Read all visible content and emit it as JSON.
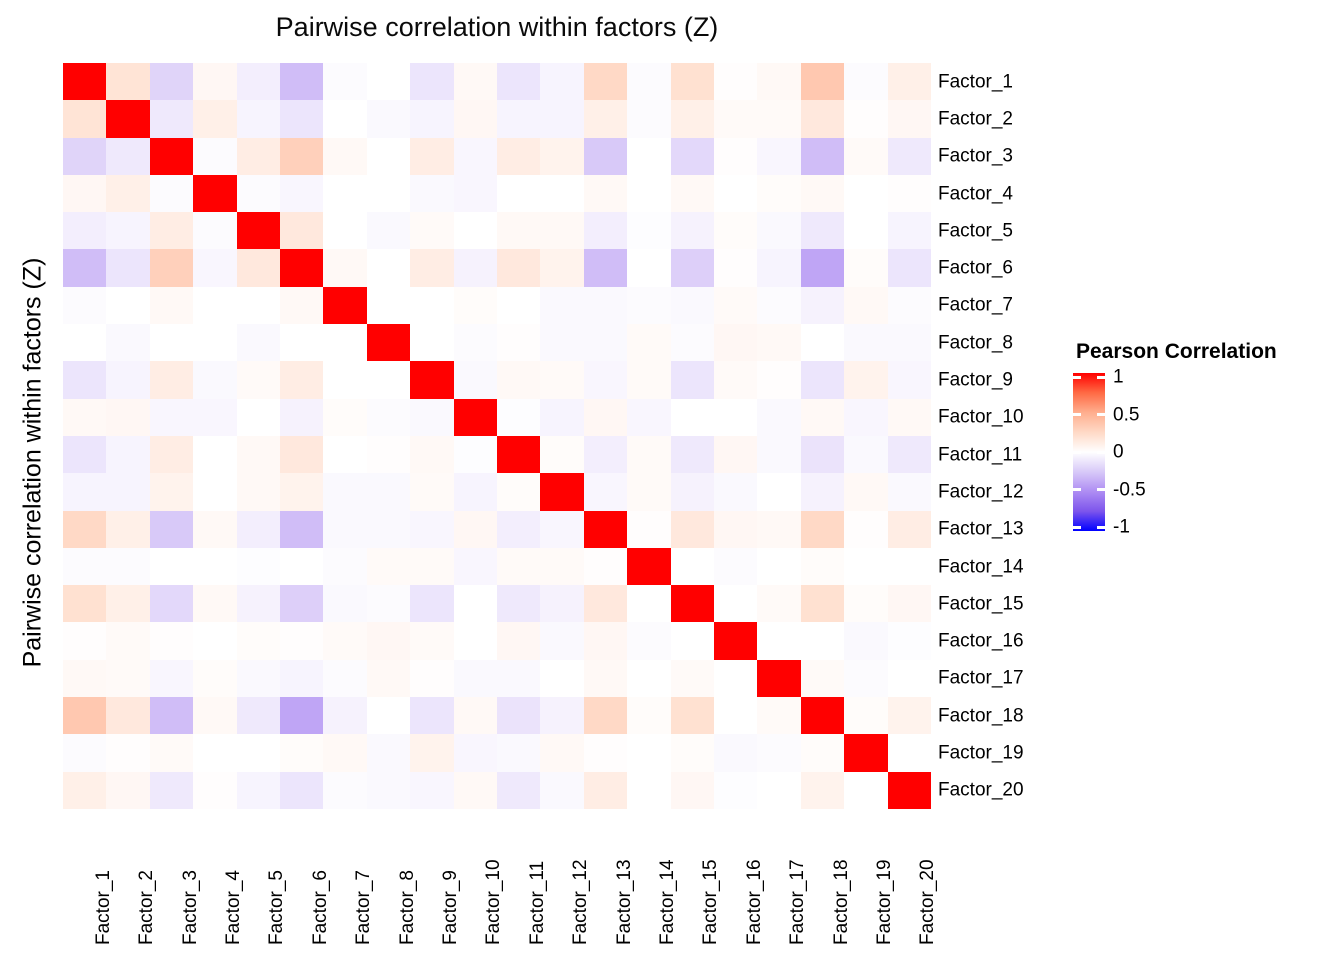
{
  "title": "Pairwise correlation within factors (Z)",
  "y_axis_title": "Pairwise correlation within factors (Z)",
  "legend": {
    "title": "Pearson Correlation",
    "tick_labels": [
      "1",
      "0.5",
      "0",
      "-0.5",
      "-1"
    ],
    "tick_values": [
      1,
      0.5,
      0,
      -0.5,
      -1
    ],
    "gradient_stops": [
      [
        1.0,
        "#FF0000"
      ],
      [
        0.75,
        "#FF6A44"
      ],
      [
        0.5,
        "#FFAE8E"
      ],
      [
        0.25,
        "#FFD9C6"
      ],
      [
        0.0,
        "#FFFFFF"
      ],
      [
        -0.25,
        "#D8C9F8"
      ],
      [
        -0.5,
        "#AE8DF3"
      ],
      [
        -0.75,
        "#7D55EC"
      ],
      [
        -1.0,
        "#0000FF"
      ]
    ],
    "high_color": "#FF0000",
    "mid_color": "#FFFFFF",
    "low_color": "#0000FF"
  },
  "chart_data": {
    "type": "heatmap",
    "title": "Pairwise correlation within factors (Z)",
    "legend_title": "Pearson Correlation",
    "legend_position": "right",
    "value_range": [
      -1,
      1
    ],
    "x_categories": [
      "Factor_1",
      "Factor_2",
      "Factor_3",
      "Factor_4",
      "Factor_5",
      "Factor_6",
      "Factor_7",
      "Factor_8",
      "Factor_9",
      "Factor_10",
      "Factor_11",
      "Factor_12",
      "Factor_13",
      "Factor_14",
      "Factor_15",
      "Factor_16",
      "Factor_17",
      "Factor_18",
      "Factor_19",
      "Factor_20"
    ],
    "y_categories": [
      "Factor_1",
      "Factor_2",
      "Factor_3",
      "Factor_4",
      "Factor_5",
      "Factor_6",
      "Factor_7",
      "Factor_8",
      "Factor_9",
      "Factor_10",
      "Factor_11",
      "Factor_12",
      "Factor_13",
      "Factor_14",
      "Factor_15",
      "Factor_16",
      "Factor_17",
      "Factor_18",
      "Factor_19",
      "Factor_20"
    ],
    "values": [
      [
        1,
        0.18,
        -0.2,
        0.05,
        -0.08,
        -0.3,
        -0.02,
        0,
        -0.12,
        0.04,
        -0.12,
        -0.05,
        0.25,
        -0.02,
        0.2,
        0.01,
        0.04,
        0.35,
        -0.02,
        0.1
      ],
      [
        0.18,
        1,
        -0.1,
        0.1,
        -0.05,
        -0.12,
        0,
        -0.03,
        -0.05,
        0.05,
        -0.05,
        -0.05,
        0.1,
        -0.02,
        0.1,
        0.03,
        0.03,
        0.15,
        0.01,
        0.05
      ],
      [
        -0.2,
        -0.1,
        1,
        -0.02,
        0.12,
        0.3,
        0.04,
        0,
        0.12,
        -0.04,
        0.12,
        0.08,
        -0.25,
        0,
        -0.18,
        0.01,
        -0.04,
        -0.3,
        0.03,
        -0.1
      ],
      [
        0.05,
        0.1,
        -0.02,
        1,
        -0.02,
        -0.04,
        0,
        0,
        -0.03,
        -0.04,
        0,
        0,
        0.04,
        0,
        0.04,
        0,
        0.02,
        0.04,
        0,
        0.01
      ],
      [
        -0.08,
        -0.05,
        0.12,
        -0.02,
        1,
        0.15,
        0,
        -0.03,
        0.03,
        0,
        0.04,
        0.04,
        -0.08,
        -0.01,
        -0.06,
        0.02,
        -0.03,
        -0.1,
        0,
        -0.05
      ],
      [
        -0.3,
        -0.12,
        0.3,
        -0.04,
        0.15,
        1,
        0.04,
        0,
        0.12,
        -0.06,
        0.15,
        0.08,
        -0.3,
        0,
        -0.22,
        0.01,
        -0.05,
        -0.4,
        0.02,
        -0.12
      ],
      [
        -0.02,
        0,
        0.04,
        0,
        0,
        0.04,
        1,
        0,
        0,
        0.02,
        0,
        -0.03,
        -0.03,
        -0.02,
        -0.03,
        0.03,
        -0.02,
        -0.06,
        0.04,
        -0.02
      ],
      [
        0,
        -0.03,
        0,
        0,
        -0.03,
        0,
        0,
        1,
        0,
        -0.02,
        0.01,
        -0.03,
        -0.03,
        0.03,
        -0.02,
        0.05,
        0.04,
        0,
        -0.03,
        -0.03
      ],
      [
        -0.12,
        -0.05,
        0.12,
        -0.03,
        0.03,
        0.12,
        0,
        0,
        1,
        -0.03,
        0.04,
        0.03,
        -0.04,
        0.03,
        -0.12,
        0.03,
        0.01,
        -0.12,
        0.08,
        -0.04
      ],
      [
        0.04,
        0.05,
        -0.04,
        -0.04,
        0,
        -0.06,
        0.02,
        -0.02,
        -0.03,
        1,
        -0.01,
        -0.05,
        0.05,
        -0.04,
        0,
        0,
        -0.03,
        0.04,
        -0.04,
        0.04
      ],
      [
        -0.12,
        -0.05,
        0.12,
        0,
        0.04,
        0.15,
        0,
        0.01,
        0.04,
        -0.01,
        1,
        0.02,
        -0.08,
        0.03,
        -0.1,
        0.05,
        -0.03,
        -0.13,
        -0.03,
        -0.1
      ],
      [
        -0.05,
        -0.05,
        0.08,
        0,
        0.04,
        0.08,
        -0.03,
        -0.03,
        0.03,
        -0.05,
        0.02,
        1,
        -0.04,
        0.03,
        -0.06,
        -0.03,
        0,
        -0.06,
        0.04,
        -0.03
      ],
      [
        0.25,
        0.1,
        -0.25,
        0.04,
        -0.08,
        -0.3,
        -0.03,
        -0.03,
        -0.04,
        0.05,
        -0.08,
        -0.04,
        1,
        0.01,
        0.15,
        0.05,
        0.04,
        0.25,
        0.01,
        0.12
      ],
      [
        -0.02,
        -0.02,
        0,
        0,
        -0.01,
        0,
        -0.02,
        0.03,
        0.03,
        -0.04,
        0.03,
        0.03,
        0.01,
        1,
        0,
        -0.02,
        0,
        0.02,
        0,
        0
      ],
      [
        0.2,
        0.1,
        -0.18,
        0.04,
        -0.06,
        -0.22,
        -0.03,
        -0.02,
        -0.12,
        0,
        -0.1,
        -0.06,
        0.15,
        0,
        1,
        0,
        0.03,
        0.2,
        0.02,
        0.05
      ],
      [
        0.01,
        0.03,
        0.01,
        0,
        0.02,
        0.01,
        0.03,
        0.05,
        0.03,
        0,
        0.05,
        -0.03,
        0.05,
        -0.02,
        0,
        1,
        0,
        0,
        -0.03,
        -0.01
      ],
      [
        0.04,
        0.03,
        -0.04,
        0.02,
        -0.03,
        -0.05,
        -0.02,
        0.04,
        0.01,
        -0.03,
        -0.03,
        0,
        0.04,
        0,
        0.03,
        0,
        1,
        0.03,
        -0.02,
        0
      ],
      [
        0.35,
        0.15,
        -0.3,
        0.04,
        -0.1,
        -0.4,
        -0.06,
        0,
        -0.12,
        0.04,
        -0.13,
        -0.06,
        0.25,
        0.02,
        0.2,
        0,
        0.03,
        1,
        0.02,
        0.08
      ],
      [
        -0.02,
        0.01,
        0.03,
        0,
        0,
        0.02,
        0.04,
        -0.03,
        0.08,
        -0.04,
        -0.03,
        0.04,
        0.01,
        0,
        0.02,
        -0.03,
        -0.02,
        0.02,
        1,
        0
      ],
      [
        0.1,
        0.05,
        -0.1,
        0.01,
        -0.05,
        -0.12,
        -0.02,
        -0.03,
        -0.04,
        0.04,
        -0.1,
        -0.03,
        0.12,
        0,
        0.05,
        -0.01,
        0,
        0.08,
        0,
        1
      ]
    ]
  }
}
